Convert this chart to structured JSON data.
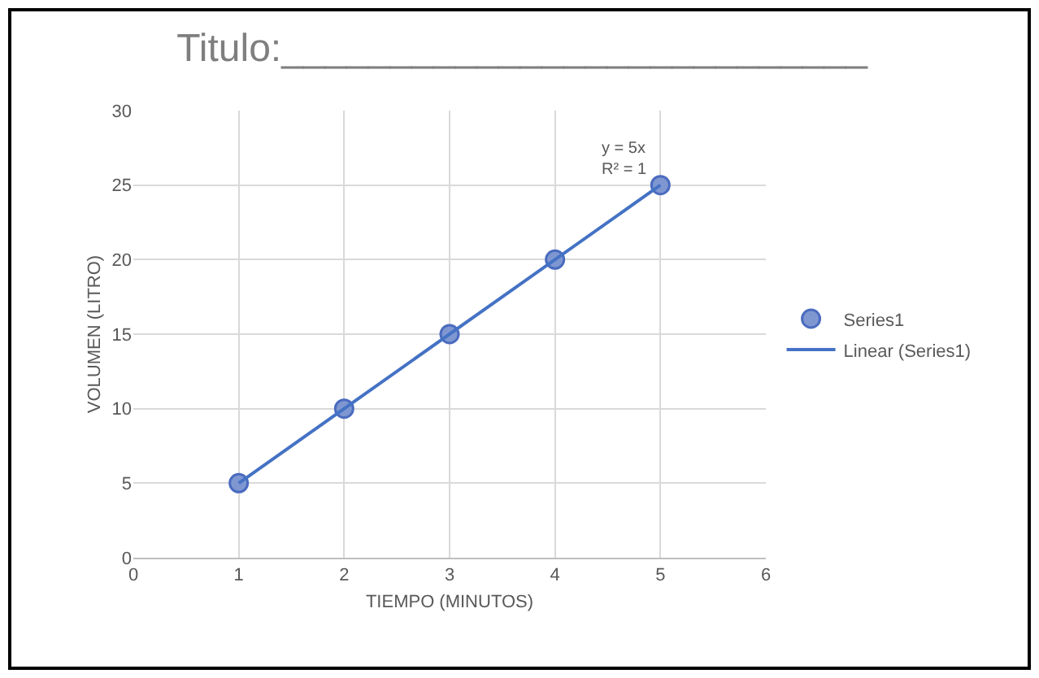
{
  "chart_data": {
    "type": "scatter",
    "title": "Titulo:___________________________",
    "xlabel": "TIEMPO (MINUTOS)",
    "ylabel": "VOLUMEN (LITRO)",
    "xlim": [
      0,
      6
    ],
    "xticks": [
      0,
      1,
      2,
      3,
      4,
      5,
      6
    ],
    "ylim": [
      0,
      30
    ],
    "yticks": [
      0,
      5,
      10,
      15,
      20,
      25,
      30
    ],
    "grid": true,
    "legend": "right",
    "marker": "circle",
    "series": [
      {
        "name": "Series1",
        "color": "#7f97d1",
        "x": [
          1,
          2,
          3,
          4,
          5
        ],
        "values": [
          5,
          10,
          15,
          20,
          25
        ]
      },
      {
        "name": "Linear (Series1)",
        "type": "line",
        "color": "#4472c4",
        "x": [
          1,
          5
        ],
        "values": [
          5,
          25
        ],
        "line_style": "solid",
        "marker": "none"
      }
    ],
    "annotations": [
      {
        "text": "y = 5x\nR² = 1",
        "x": 5,
        "y": 25
      }
    ]
  }
}
